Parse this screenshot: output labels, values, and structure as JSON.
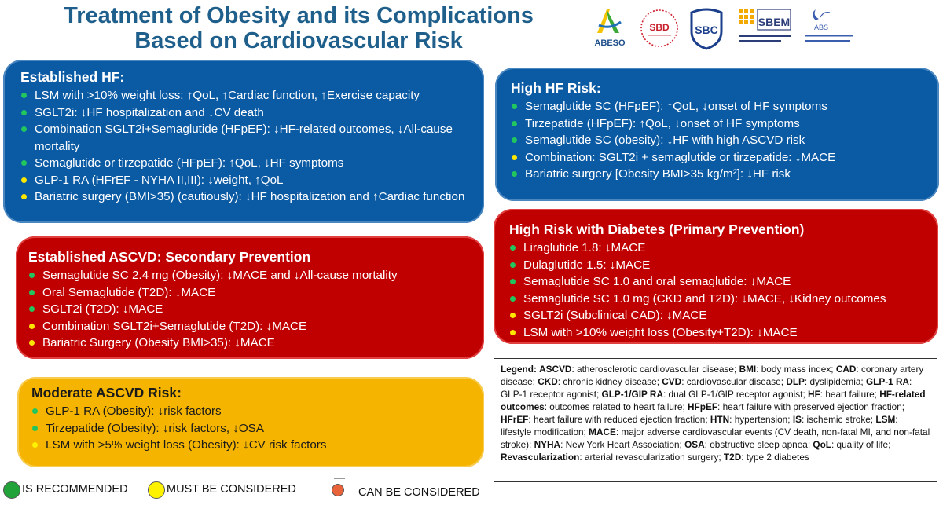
{
  "title": {
    "line1": "Treatment of Obesity and its Complications",
    "line2": "Based on Cardiovascular Risk"
  },
  "logos": {
    "abeso": "ABESO",
    "sbd": "SBD",
    "sbc": "SBC",
    "sbem": "SBEM",
    "abs": "ABS"
  },
  "colors": {
    "blue_box": "#0a5aa4",
    "red_box": "#c00000",
    "orange_box": "#f5b400",
    "title": "#1f5f8b",
    "green_dot": "#22c55e",
    "yellow_dot": "#ffe600",
    "orange_dot": "#e8623a"
  },
  "established_hf": {
    "title": "Established HF:",
    "items": [
      {
        "text": "LSM with >10% weight loss: ↑QoL, ↑Cardiac function, ↑Exercise capacity",
        "level": "green"
      },
      {
        "text": "SGLT2i: ↓HF hospitalization and ↓CV death",
        "level": "green"
      },
      {
        "text": "Combination SGLT2i+Semaglutide (HFpEF): ↓HF-related outcomes, ↓All-cause mortality",
        "level": "green"
      },
      {
        "text": "Semaglutide or tirzepatide (HFpEF): ↑QoL, ↓HF symptoms",
        "level": "green"
      },
      {
        "text": "GLP-1 RA (HFrEF - NYHA II,III): ↓weight, ↑QoL",
        "level": "yellow"
      },
      {
        "text": "Bariatric surgery (BMI>35) (cautiously): ↓HF hospitalization and ↑Cardiac function",
        "level": "yellow"
      }
    ]
  },
  "high_hf_risk": {
    "title": "High HF Risk:",
    "items": [
      {
        "text": "Semaglutide SC (HFpEF): ↑QoL, ↓onset of HF symptoms",
        "level": "green"
      },
      {
        "text": "Tirzepatide (HFpEF): ↑QoL, ↓onset of HF symptoms",
        "level": "green"
      },
      {
        "text": "Semaglutide SC (obesity): ↓HF with high ASCVD risk",
        "level": "green"
      },
      {
        "text": "Combination: SGLT2i + semaglutide or tirzepatide: ↓MACE",
        "level": "yellow"
      },
      {
        "text": "Bariatric surgery [Obesity BMI>35 kg/m²]: ↓HF risk",
        "level": "green"
      }
    ]
  },
  "established_ascvd": {
    "title": "Established ASCVD: Secondary Prevention",
    "items": [
      {
        "text": "Semaglutide SC 2.4 mg (Obesity): ↓MACE and ↓All-cause mortality",
        "level": "green"
      },
      {
        "text": "Oral Semaglutide (T2D): ↓MACE",
        "level": "green"
      },
      {
        "text": "SGLT2i (T2D): ↓MACE",
        "level": "green"
      },
      {
        "text": "Combination SGLT2i+Semaglutide (T2D): ↓MACE",
        "level": "yellow"
      },
      {
        "text": "Bariatric Surgery (Obesity BMI>35): ↓MACE",
        "level": "yellow"
      }
    ]
  },
  "high_risk_diabetes": {
    "title": "High Risk with Diabetes (Primary Prevention)",
    "items": [
      {
        "text": "Liraglutide 1.8: ↓MACE",
        "level": "green"
      },
      {
        "text": "Dulaglutide 1.5: ↓MACE",
        "level": "green"
      },
      {
        "text": "Semaglutide SC 1.0 and oral semaglutide: ↓MACE",
        "level": "green"
      },
      {
        "text": "Semaglutide SC 1.0 mg (CKD and T2D): ↓MACE, ↓Kidney outcomes",
        "level": "green"
      },
      {
        "text": "SGLT2i (Subclinical CAD): ↓MACE",
        "level": "yellow"
      },
      {
        "text": "LSM with >10% weight loss (Obesity+T2D): ↓MACE",
        "level": "yellow"
      }
    ]
  },
  "moderate_ascvd": {
    "title": "Moderate ASCVD Risk:",
    "items": [
      {
        "text": "GLP-1 RA (Obesity): ↓risk factors",
        "level": "green"
      },
      {
        "text": "Tirzepatide (Obesity): ↓risk factors, ↓OSA",
        "level": "green"
      },
      {
        "text": "LSM with >5% weight loss (Obesity): ↓CV risk factors",
        "level": "yellow"
      }
    ]
  },
  "legend": {
    "label": "Legend:",
    "entries": [
      {
        "term": "ASCVD",
        "def": "atherosclerotic cardiovascular disease;"
      },
      {
        "term": "BMI",
        "def": "body mass index;"
      },
      {
        "term": "CAD",
        "def": "coronary artery disease;"
      },
      {
        "term": "CKD",
        "def": "chronic kidney disease;"
      },
      {
        "term": "CVD",
        "def": "cardiovascular disease;"
      },
      {
        "term": "DLP",
        "def": "dyslipidemia;"
      },
      {
        "term": "GLP-1 RA",
        "def": "GLP-1 receptor agonist;"
      },
      {
        "term": "GLP-1/GIP RA",
        "def": "dual GLP-1/GIP receptor agonist;"
      },
      {
        "term": "HF",
        "def": "heart failure;"
      },
      {
        "term": "HF-related outcomes",
        "def": "outcomes related to heart failure;"
      },
      {
        "term": "HFpEF",
        "def": "heart failure with preserved ejection fraction;"
      },
      {
        "term": "HFrEF",
        "def": "heart failure with reduced ejection fraction;"
      },
      {
        "term": "HTN",
        "def": "hypertension;"
      },
      {
        "term": "IS",
        "def": "ischemic stroke;"
      },
      {
        "term": "LSM",
        "def": "lifestyle modification;"
      },
      {
        "term": "MACE",
        "def": "major adverse cardiovascular events (CV death, non-fatal MI, and non-fatal stroke);"
      },
      {
        "term": "NYHA",
        "def": "New York Heart Association;"
      },
      {
        "term": "OSA",
        "def": "obstructive sleep apnea;"
      },
      {
        "term": "QoL",
        "def": "quality of life;"
      },
      {
        "term": "Revascularization",
        "def": "arterial revascularization surgery;"
      },
      {
        "term": "T2D",
        "def": "type 2 diabetes"
      }
    ]
  },
  "key": {
    "recommended": "IS RECOMMENDED",
    "must": "MUST  BE CONSIDERED",
    "can": "CAN  BE CONSIDERED"
  }
}
